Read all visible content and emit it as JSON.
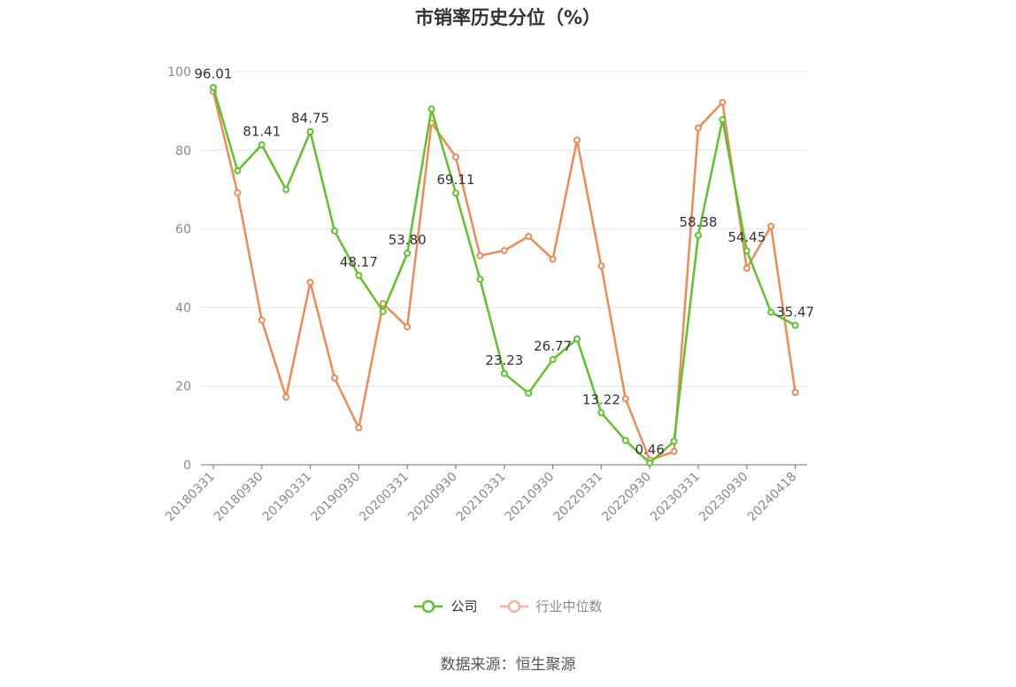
{
  "chart_data": {
    "type": "line",
    "title": "市销率历史分位（%）",
    "ylim": [
      0,
      100
    ],
    "yticks": [
      0,
      20,
      40,
      60,
      80,
      100
    ],
    "grid": true,
    "legend_position": "bottom",
    "x": [
      "20180331",
      "20180630",
      "20180930",
      "20181231",
      "20190331",
      "20190630",
      "20190930",
      "20191231",
      "20200331",
      "20200630",
      "20200930",
      "20201231",
      "20210331",
      "20210630",
      "20210930",
      "20211231",
      "20220331",
      "20220630",
      "20220930",
      "20221231",
      "20230331",
      "20230630",
      "20230930",
      "20231231",
      "20240418"
    ],
    "xtick_labels": [
      "20180331",
      "20180930",
      "20190331",
      "20190930",
      "20200331",
      "20200930",
      "20210331",
      "20210930",
      "20220331",
      "20220930",
      "20230331",
      "20230930",
      "20240418"
    ],
    "series": [
      {
        "name": "公司",
        "color": "#5dc32a",
        "values": [
          96.01,
          74.8,
          81.41,
          70.0,
          84.75,
          59.5,
          48.17,
          39.0,
          53.8,
          90.5,
          69.11,
          47.2,
          23.23,
          18.2,
          26.77,
          32.0,
          13.22,
          6.2,
          0.46,
          6.0,
          58.38,
          87.8,
          54.45,
          38.8,
          35.47
        ],
        "labels": {
          "0": "96.01",
          "2": "81.41",
          "4": "84.75",
          "6": "48.17",
          "8": "53.80",
          "10": "69.11",
          "12": "23.23",
          "14": "26.77",
          "16": "13.22",
          "18": "0.46",
          "20": "58.38",
          "22": "54.45",
          "24": "35.47"
        }
      },
      {
        "name": "行业中位数",
        "color": "#f08a55",
        "values": [
          95.0,
          69.2,
          36.8,
          17.2,
          46.4,
          22.1,
          9.4,
          41.0,
          35.1,
          87.0,
          78.3,
          53.2,
          54.5,
          58.1,
          52.3,
          82.6,
          50.6,
          16.8,
          1.2,
          3.4,
          85.7,
          92.2,
          50.0,
          60.7,
          18.4
        ]
      }
    ]
  },
  "legend": {
    "items": [
      {
        "label": "公司",
        "color": "#5dc32a"
      },
      {
        "label": "行业中位数",
        "color": "#f5b49a"
      }
    ]
  },
  "source": "数据来源：恒生聚源"
}
